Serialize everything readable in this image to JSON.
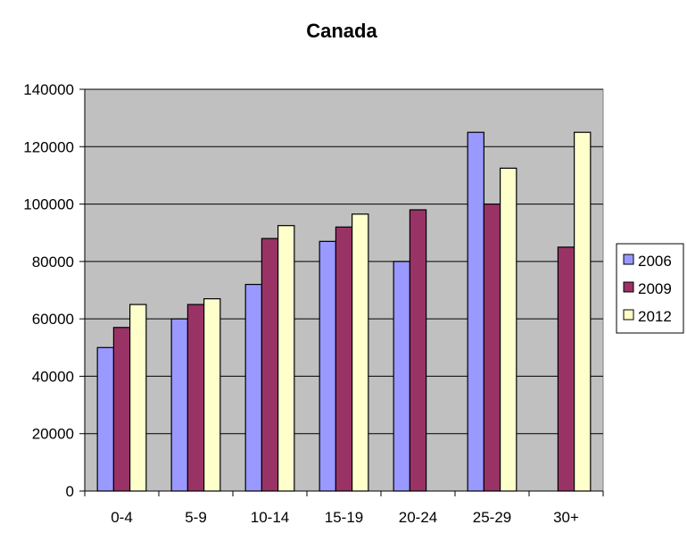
{
  "chart_data": {
    "type": "bar",
    "title": "Canada",
    "xlabel": "",
    "ylabel": "",
    "categories": [
      "0-4",
      "5-9",
      "10-14",
      "15-19",
      "20-24",
      "25-29",
      "30+"
    ],
    "series": [
      {
        "name": "2006",
        "color": "#9999ff",
        "values": [
          50000,
          60000,
          72000,
          87000,
          80000,
          125000,
          null
        ]
      },
      {
        "name": "2009",
        "color": "#993366",
        "values": [
          57000,
          65000,
          88000,
          92000,
          98000,
          100000,
          85000
        ]
      },
      {
        "name": "2012",
        "color": "#ffffcc",
        "values": [
          65000,
          67000,
          92500,
          96500,
          null,
          112500,
          125000
        ]
      }
    ],
    "ylim": [
      0,
      140000
    ],
    "yticks": [
      0,
      20000,
      40000,
      60000,
      80000,
      100000,
      120000,
      140000
    ],
    "grid": true,
    "plot_background": "#c0c0c0",
    "legend_position": "right"
  }
}
